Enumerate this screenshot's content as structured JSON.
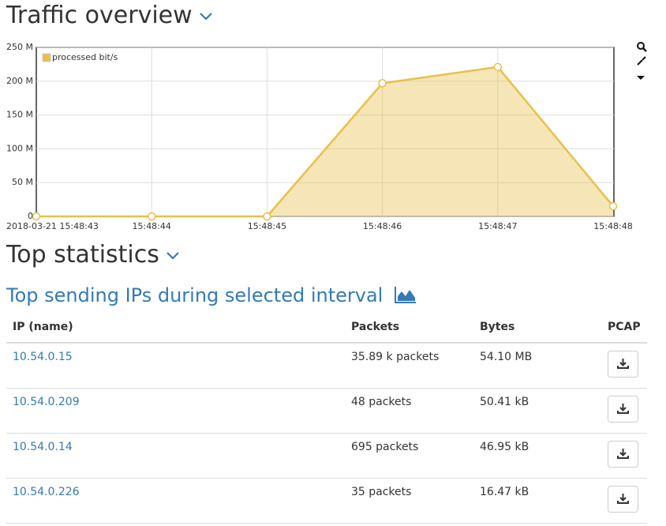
{
  "traffic": {
    "title": "Traffic overview"
  },
  "chart_data": {
    "type": "area",
    "categories": [
      "2018-03-21 15:48:43",
      "15:48:44",
      "15:48:45",
      "15:48:46",
      "15:48:47",
      "15:48:48"
    ],
    "series": [
      {
        "name": "processed bit/s",
        "color": "#e8c04a",
        "values": [
          0,
          0,
          0,
          197000000,
          221000000,
          15000000
        ]
      }
    ],
    "ylim": [
      0,
      250000000
    ],
    "yticks": [
      0,
      {
        "value": 50000000,
        "label": "50 M"
      },
      {
        "value": 100000000,
        "label": "100 M"
      },
      {
        "value": 150000000,
        "label": "150 M"
      },
      {
        "value": 200000000,
        "label": "200 M"
      },
      {
        "value": 250000000,
        "label": "250 M"
      }
    ],
    "grid": true,
    "legend": "top-left"
  },
  "statistics": {
    "title": "Top statistics",
    "subtitle": "Top sending IPs during selected interval",
    "table": {
      "headers": [
        "IP (name)",
        "Packets",
        "Bytes",
        "PCAP"
      ],
      "rows": [
        [
          "10.54.0.15",
          "35.89 k packets",
          "54.10 MB"
        ],
        [
          "10.54.0.209",
          "48 packets",
          "50.41 kB"
        ],
        [
          "10.54.0.14",
          "695 packets",
          "46.95 kB"
        ],
        [
          "10.54.0.226",
          "35 packets",
          "16.47 kB"
        ]
      ]
    }
  }
}
